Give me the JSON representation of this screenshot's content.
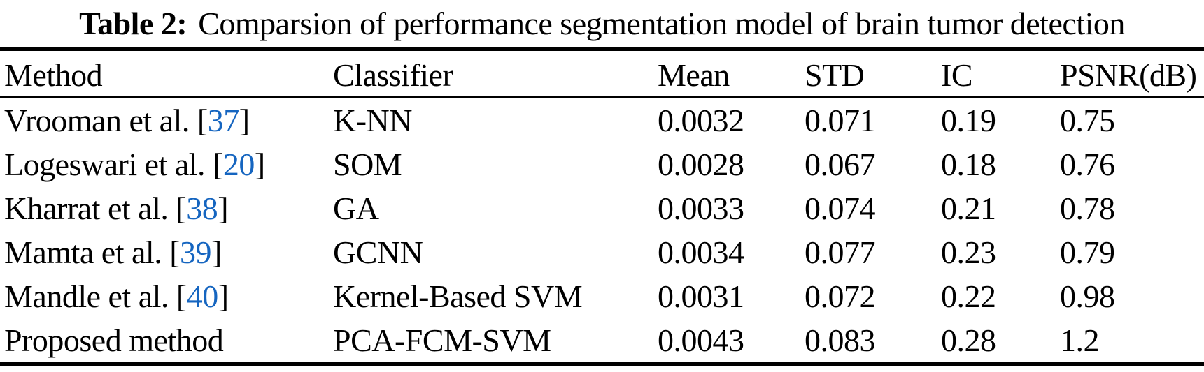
{
  "caption": {
    "label": "Table 2:",
    "text": "Comparsion of performance segmentation model of brain tumor detection"
  },
  "colors": {
    "citation_blue": "#1565C0",
    "text_black": "#000000",
    "background": "#ffffff"
  },
  "table": {
    "headers": [
      "Method",
      "Classifier",
      "Mean",
      "STD",
      "IC",
      "PSNR(dB)"
    ],
    "rows": [
      {
        "method": "Vrooman et al.",
        "cite_pre": " [",
        "citation": "37",
        "cite_post": "]",
        "classifier": "K-NN",
        "mean": "0.0032",
        "std": "0.071",
        "ic": "0.19",
        "psnr": "0.75"
      },
      {
        "method": "Logeswari et al.",
        "cite_pre": " [",
        "citation": "20",
        "cite_post": "]",
        "classifier": "SOM",
        "mean": "0.0028",
        "std": "0.067",
        "ic": "0.18",
        "psnr": "0.76"
      },
      {
        "method": "Kharrat et al.",
        "cite_pre": " [",
        "citation": "38",
        "cite_post": "]",
        "classifier": "GA",
        "mean": "0.0033",
        "std": "0.074",
        "ic": "0.21",
        "psnr": "0.78"
      },
      {
        "method": "Mamta et al.",
        "cite_pre": " [",
        "citation": "39",
        "cite_post": "]",
        "classifier": "GCNN",
        "mean": "0.0034",
        "std": "0.077",
        "ic": "0.23",
        "psnr": "0.79"
      },
      {
        "method": "Mandle et al.",
        "cite_pre": " [",
        "citation": "40",
        "cite_post": "]",
        "classifier": "Kernel-Based SVM",
        "mean": "0.0031",
        "std": "0.072",
        "ic": "0.22",
        "psnr": "0.98"
      },
      {
        "method": "Proposed method",
        "cite_pre": "",
        "citation": "",
        "cite_post": "",
        "classifier": "PCA-FCM-SVM",
        "mean": "0.0043",
        "std": "0.083",
        "ic": "0.28",
        "psnr": "1.2"
      }
    ]
  }
}
